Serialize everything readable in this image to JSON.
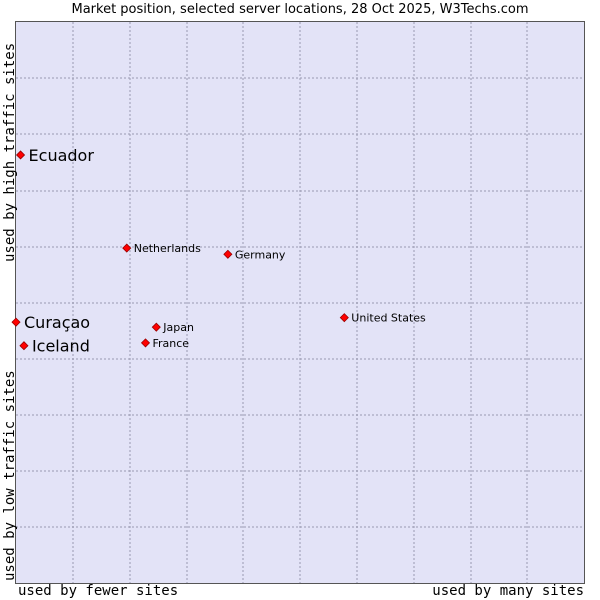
{
  "chart_data": {
    "type": "scatter",
    "title": "Market position, selected server locations, 28 Oct 2025, W3Techs.com",
    "xlabel_left": "used by fewer sites",
    "xlabel_right": "used by many sites",
    "ylabel_bottom": "used by low traffic sites",
    "ylabel_top": "used by high traffic sites",
    "xlim": [
      0,
      100
    ],
    "ylim": [
      0,
      100
    ],
    "grid": true,
    "points": [
      {
        "name": "Ecuador",
        "x": 0.8,
        "y": 76.3,
        "highlight": true
      },
      {
        "name": "Netherlands",
        "x": 19.5,
        "y": 59.7,
        "highlight": false
      },
      {
        "name": "Germany",
        "x": 37.3,
        "y": 58.6,
        "highlight": false
      },
      {
        "name": "United States",
        "x": 57.8,
        "y": 47.3,
        "highlight": false
      },
      {
        "name": "Curaçao",
        "x": 0.0,
        "y": 46.5,
        "highlight": true
      },
      {
        "name": "Japan",
        "x": 24.7,
        "y": 45.6,
        "highlight": false
      },
      {
        "name": "France",
        "x": 22.8,
        "y": 42.8,
        "highlight": false
      },
      {
        "name": "Iceland",
        "x": 1.4,
        "y": 42.3,
        "highlight": true
      }
    ]
  },
  "colors": {
    "plot_bg": "#e3e3f7",
    "grid": "#9a9ab0",
    "marker": "#ff0000",
    "marker_edge": "#990000"
  }
}
